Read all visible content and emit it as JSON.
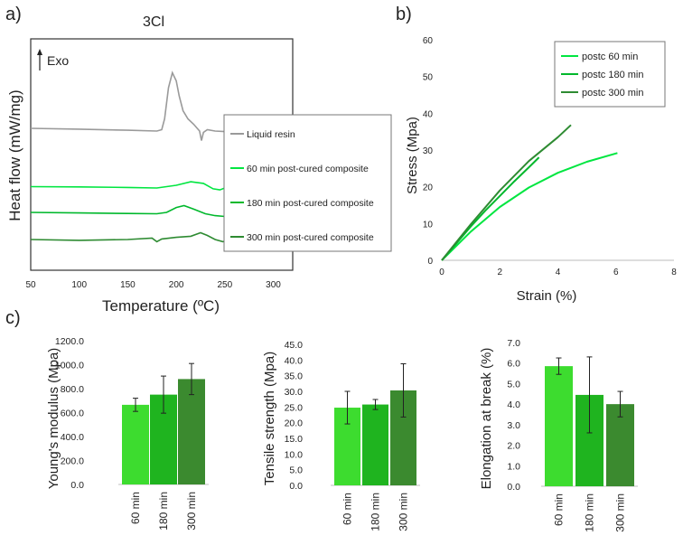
{
  "panel_labels": {
    "a": "a)",
    "b": "b)",
    "c": "c)"
  },
  "colors": {
    "liquid": "#9a9a9a",
    "c60": "#00e640",
    "c180": "#00b82c",
    "c300": "#2e8b32",
    "bar60": "#3ddc2f",
    "bar180": "#1fb41f",
    "bar300": "#3b8a2f"
  },
  "chart_data": [
    {
      "id": "dsc",
      "type": "line",
      "title": "3Cl",
      "xlabel": "Temperature (ºC)",
      "ylabel": "Heat flow (mW/mg)",
      "arrow_label": "Exo",
      "xlim": [
        50,
        320
      ],
      "xticks": [
        50,
        100,
        150,
        200,
        250,
        300
      ],
      "series": [
        {
          "name": "Liquid resin",
          "color_key": "liquid",
          "baseline": 4.2,
          "x": [
            50,
            100,
            150,
            180,
            185,
            188,
            192,
            196,
            200,
            203,
            207,
            212,
            218,
            224,
            226,
            228,
            232,
            240,
            250,
            260,
            270
          ],
          "y": [
            0,
            -0.03,
            -0.07,
            -0.1,
            -0.05,
            0.35,
            1.5,
            2.05,
            1.75,
            1.2,
            0.65,
            0.35,
            0.15,
            -0.1,
            -0.45,
            -0.15,
            -0.05,
            -0.1,
            -0.12,
            -0.15,
            -0.18
          ]
        },
        {
          "name": "60 min post-cured composite",
          "color_key": "c60",
          "baseline": 2.05,
          "x": [
            50,
            100,
            150,
            180,
            200,
            215,
            228,
            238,
            245,
            250,
            258,
            270
          ],
          "y": [
            0,
            -0.01,
            -0.03,
            -0.05,
            0.05,
            0.18,
            0.12,
            -0.08,
            -0.12,
            -0.05,
            0.02,
            0.0
          ]
        },
        {
          "name": "180 min post-cured composite",
          "color_key": "c180",
          "baseline": 1.1,
          "x": [
            50,
            100,
            150,
            180,
            190,
            200,
            208,
            218,
            230,
            240,
            250,
            260,
            270
          ],
          "y": [
            0,
            -0.02,
            -0.04,
            -0.05,
            0.0,
            0.18,
            0.25,
            0.12,
            -0.05,
            -0.12,
            -0.15,
            -0.1,
            -0.1
          ]
        },
        {
          "name": "300 min post-cured composite",
          "color_key": "c300",
          "baseline": 0.1,
          "x": [
            50,
            100,
            150,
            175,
            180,
            185,
            200,
            215,
            225,
            232,
            240,
            248,
            255,
            262,
            270
          ],
          "y": [
            0,
            -0.03,
            0.0,
            0.05,
            -0.08,
            0.02,
            0.08,
            0.12,
            0.25,
            0.15,
            0.0,
            -0.08,
            -0.02,
            -0.04,
            -0.05
          ]
        }
      ]
    },
    {
      "id": "stress_strain",
      "type": "line",
      "xlabel": "Strain (%)",
      "ylabel": "Stress (Mpa)",
      "xlim": [
        0,
        8
      ],
      "ylim": [
        0,
        60
      ],
      "xticks": [
        0,
        2,
        4,
        6,
        8
      ],
      "yticks": [
        0,
        10,
        20,
        30,
        40,
        50,
        60
      ],
      "series": [
        {
          "name": "postc 60 min",
          "color_key": "c60",
          "x": [
            0,
            1,
            2,
            3,
            4,
            5,
            6.05
          ],
          "y": [
            0,
            7.8,
            14.5,
            19.8,
            23.8,
            26.8,
            29.2
          ]
        },
        {
          "name": "postc 180 min",
          "color_key": "c180",
          "x": [
            0,
            0.5,
            1,
            1.5,
            2,
            2.5,
            3,
            3.35
          ],
          "y": [
            0,
            4.6,
            9.2,
            13.5,
            17.5,
            21.5,
            25.3,
            28.0
          ]
        },
        {
          "name": "postc 300 min",
          "color_key": "c300",
          "x": [
            0,
            1,
            2,
            3,
            4,
            4.45
          ],
          "y": [
            0,
            9.8,
            19.0,
            27.0,
            33.5,
            36.8
          ]
        }
      ]
    },
    {
      "id": "youngs",
      "type": "bar",
      "ylabel": "Young's modulus (Mpa)",
      "categories": [
        "60 min",
        "180 min",
        "300 min"
      ],
      "values": [
        665,
        750,
        880
      ],
      "errors": [
        55,
        155,
        130
      ],
      "ylim": [
        0,
        1200
      ],
      "yticks": [
        "0.0",
        "200.0",
        "400.0",
        "600.0",
        "800.0",
        "1000.0",
        "1200.0"
      ]
    },
    {
      "id": "tensile",
      "type": "bar",
      "ylabel": "Tensile strength (Mpa)",
      "categories": [
        "60 min",
        "180 min",
        "300 min"
      ],
      "values": [
        24.8,
        25.8,
        30.3
      ],
      "errors": [
        5.2,
        1.6,
        8.5
      ],
      "ylim": [
        0,
        45
      ],
      "yticks": [
        "0.0",
        "5.0",
        "10.0",
        "15.0",
        "20.0",
        "25.0",
        "30.0",
        "35.0",
        "40.0",
        "45.0"
      ]
    },
    {
      "id": "elongation",
      "type": "bar",
      "ylabel": "Elongation at break (%)",
      "categories": [
        "60 min",
        "180 min",
        "300 min"
      ],
      "values": [
        5.85,
        4.45,
        4.0
      ],
      "errors": [
        0.4,
        1.85,
        0.62
      ],
      "ylim": [
        0,
        7
      ],
      "yticks": [
        "0.0",
        "1.0",
        "2.0",
        "3.0",
        "4.0",
        "5.0",
        "6.0",
        "7.0"
      ]
    }
  ]
}
